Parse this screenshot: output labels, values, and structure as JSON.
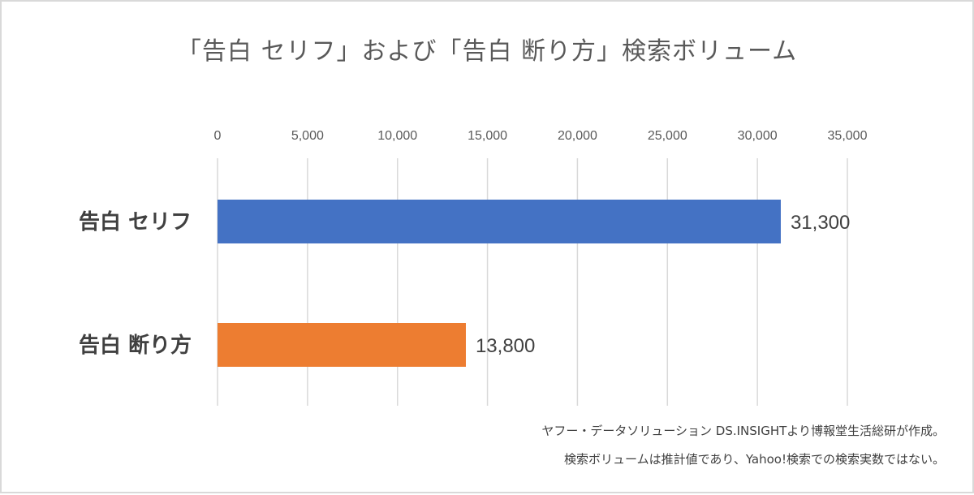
{
  "chart_data": {
    "type": "bar",
    "orientation": "horizontal",
    "title": "「告白 セリフ」および「告白 断り方」検索ボリューム",
    "categories": [
      "告白 セリフ",
      "告白 断り方"
    ],
    "values": [
      31300,
      13800
    ],
    "data_labels": [
      "31,300",
      "13,800"
    ],
    "colors": [
      "#4472c4",
      "#ed7d31"
    ],
    "xlim": [
      0,
      35000
    ],
    "ticks": [
      0,
      5000,
      10000,
      15000,
      20000,
      25000,
      30000,
      35000
    ],
    "tick_labels": [
      "0",
      "5,000",
      "10,000",
      "15,000",
      "20,000",
      "25,000",
      "30,000",
      "35,000"
    ],
    "axis_position": "top",
    "grid": true,
    "legend": "none"
  },
  "notes": [
    "ヤフー・データソリューション DS.INSIGHTより博報堂生活総研が作成。",
    "検索ボリュームは推計値であり、Yahoo!検索での検索実数ではない。"
  ]
}
